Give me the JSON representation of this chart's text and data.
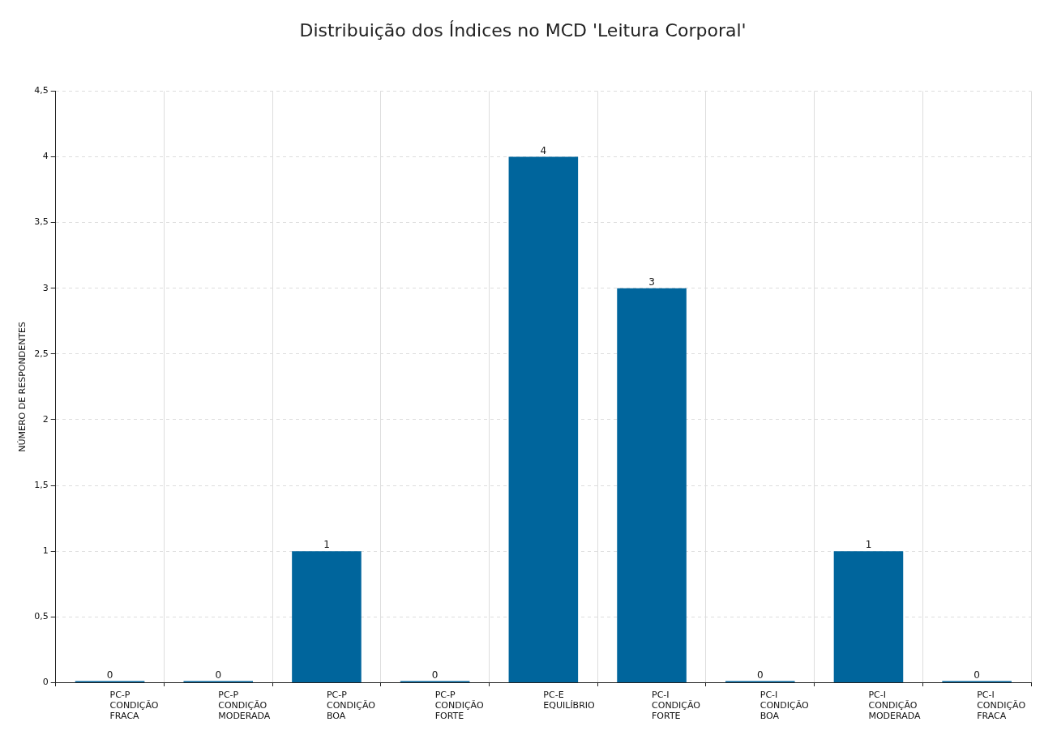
{
  "chart_data": {
    "type": "bar",
    "title": "Distribuição dos Índices no MCD 'Leitura Corporal'",
    "ylabel": "NÚMERO DE RESPONDENTES",
    "categories": [
      "PC-P\nCONDIÇÃO\nFRACA",
      "PC-P\nCONDIÇÃO\nMODERADA",
      "PC-P\nCONDIÇÃO\nBOA",
      "PC-P\nCONDIÇÃO\nFORTE",
      "PC-E\nEQUILÍBRIO",
      "PC-I\nCONDIÇÃO\nFORTE",
      "PC-I\nCONDIÇÃO\nBOA",
      "PC-I\nCONDIÇÃO\nMODERADA",
      "PC-I\nCONDIÇÃO\nFRACA"
    ],
    "values": [
      0,
      0,
      1,
      0,
      4,
      3,
      0,
      1,
      0
    ],
    "color": "#00659c",
    "ylim": [
      0,
      4.5
    ],
    "yticks": [
      0,
      {
        "value": 0.5,
        "label": "0,5"
      },
      1,
      {
        "value": 1.5,
        "label": "1,5"
      },
      2,
      {
        "value": 2.5,
        "label": "2,5"
      },
      3,
      {
        "value": 3.5,
        "label": "3,5"
      },
      4,
      {
        "value": 4.5,
        "label": "4,5"
      }
    ],
    "grid": true,
    "data_labels": true,
    "legend": false
  }
}
